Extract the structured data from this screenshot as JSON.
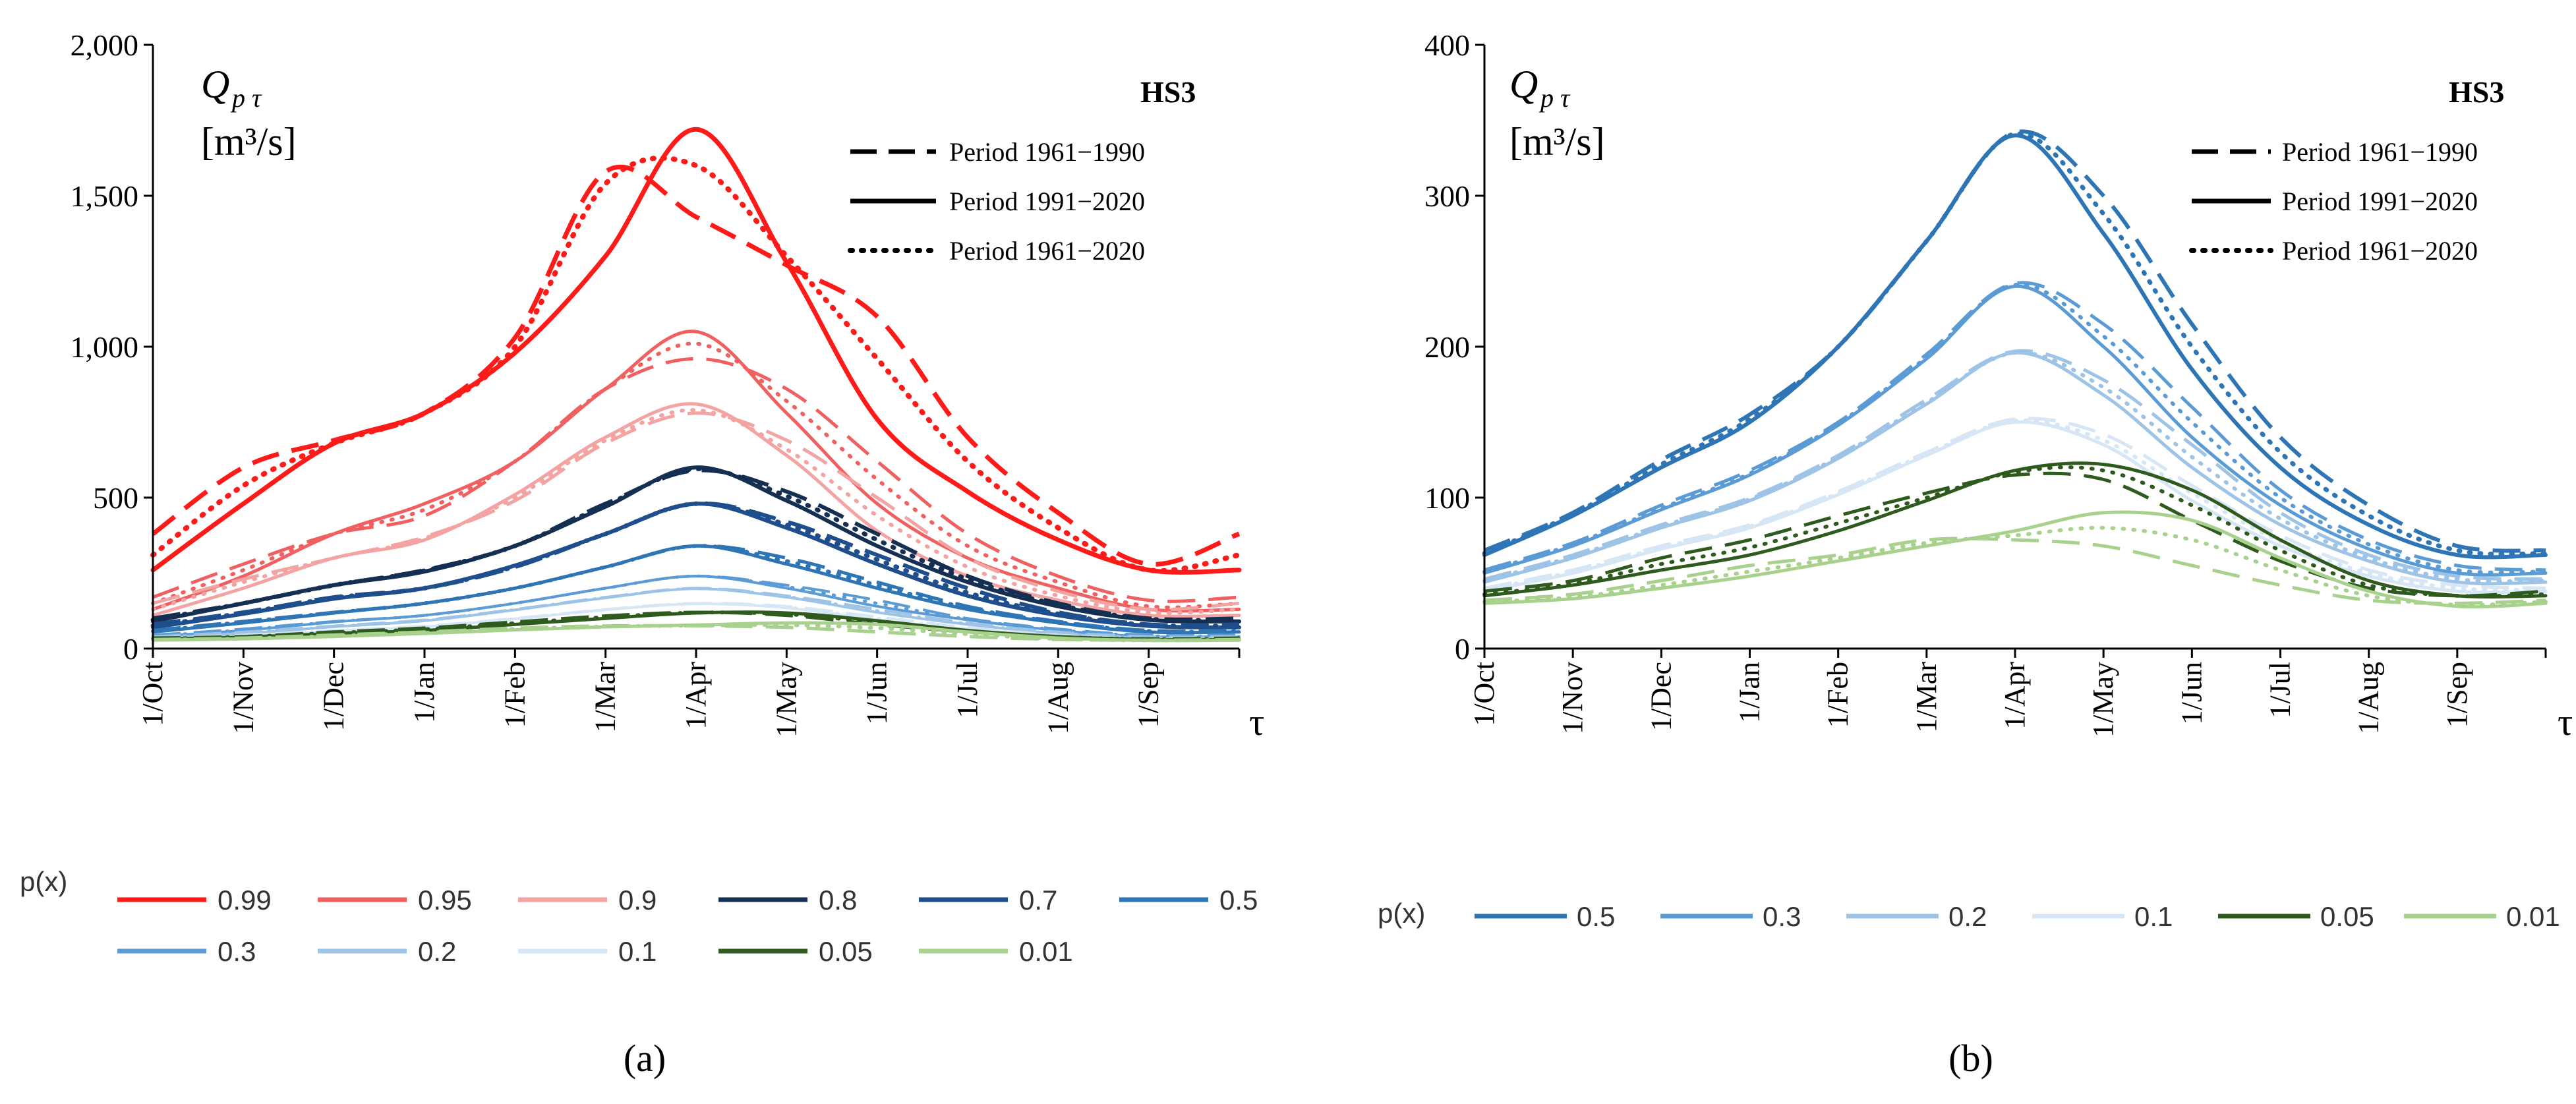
{
  "months": [
    "1/Oct",
    "1/Nov",
    "1/Dec",
    "1/Jan",
    "1/Feb",
    "1/Mar",
    "1/Apr",
    "1/May",
    "1/Jun",
    "1/Jul",
    "1/Aug",
    "1/Sep"
  ],
  "tau": "τ",
  "ylabel_line1": "Q",
  "ylabel_sub": "p τ",
  "ylabel_line2": "[m³/s]",
  "title": "HS3",
  "period_labels": [
    "Period 1961−1990",
    "Period 1991−2020",
    "Period 1961−2020"
  ],
  "px_label": "p(x)",
  "captions": [
    "(a)",
    "(b)"
  ],
  "chart_data": [
    {
      "type": "line",
      "title": "HS3",
      "ylim": [
        0,
        2000
      ],
      "yticks": [
        "0",
        "500",
        "1,000",
        "1,500",
        "2,000"
      ],
      "ytick_values": [
        0,
        500,
        1000,
        1500,
        2000
      ],
      "x": [
        0,
        1,
        2,
        3,
        4,
        5,
        6,
        7,
        8,
        9,
        10,
        11,
        12
      ],
      "xlabel": "τ",
      "series": [
        {
          "name": "0.99",
          "color": "#ff1a1a",
          "width": 7,
          "p1": [
            380,
            600,
            690,
            780,
            1030,
            1580,
            1430,
            1270,
            1100,
            700,
            450,
            280,
            380
          ],
          "p2": [
            260,
            480,
            680,
            780,
            980,
            1300,
            1720,
            1280,
            760,
            520,
            360,
            260,
            260
          ],
          "p3": [
            310,
            540,
            680,
            780,
            1000,
            1540,
            1600,
            1300,
            960,
            620,
            400,
            260,
            310
          ]
        },
        {
          "name": "0.95",
          "color": "#f06060",
          "width": 5,
          "p1": [
            170,
            280,
            380,
            440,
            620,
            860,
            960,
            860,
            620,
            380,
            240,
            160,
            170
          ],
          "p2": [
            130,
            240,
            380,
            480,
            620,
            860,
            1050,
            780,
            480,
            300,
            200,
            130,
            130
          ],
          "p3": [
            150,
            260,
            380,
            460,
            620,
            860,
            1010,
            820,
            560,
            340,
            220,
            140,
            150
          ]
        },
        {
          "name": "0.9",
          "color": "#f4a3a3",
          "width": 5,
          "p1": [
            150,
            230,
            300,
            370,
            490,
            680,
            780,
            690,
            500,
            300,
            190,
            130,
            150
          ],
          "p2": [
            110,
            200,
            300,
            360,
            510,
            700,
            810,
            640,
            390,
            240,
            160,
            110,
            110
          ],
          "p3": [
            130,
            220,
            300,
            365,
            500,
            690,
            790,
            660,
            440,
            270,
            175,
            120,
            130
          ]
        },
        {
          "name": "0.8",
          "color": "#152f52",
          "width": 6,
          "p1": [
            100,
            150,
            210,
            260,
            340,
            480,
            590,
            520,
            380,
            240,
            150,
            100,
            100
          ],
          "p2": [
            90,
            150,
            210,
            255,
            340,
            470,
            600,
            490,
            340,
            220,
            140,
            95,
            90
          ],
          "p3": [
            95,
            150,
            210,
            258,
            340,
            475,
            595,
            505,
            360,
            230,
            145,
            98,
            95
          ]
        },
        {
          "name": "0.7",
          "color": "#1f4e8c",
          "width": 6,
          "p1": [
            80,
            120,
            170,
            200,
            270,
            380,
            480,
            420,
            310,
            200,
            120,
            80,
            80
          ],
          "p2": [
            70,
            115,
            165,
            200,
            275,
            380,
            480,
            400,
            280,
            175,
            110,
            75,
            70
          ],
          "p3": [
            75,
            118,
            168,
            200,
            272,
            380,
            480,
            410,
            295,
            185,
            115,
            78,
            75
          ]
        },
        {
          "name": "0.5",
          "color": "#2e75b6",
          "width": 5,
          "p1": [
            60,
            90,
            120,
            150,
            200,
            270,
            340,
            300,
            220,
            140,
            90,
            60,
            60
          ],
          "p2": [
            55,
            85,
            118,
            150,
            200,
            270,
            340,
            280,
            200,
            130,
            85,
            55,
            55
          ],
          "p3": [
            58,
            88,
            119,
            150,
            200,
            270,
            340,
            290,
            210,
            135,
            88,
            58,
            58
          ]
        },
        {
          "name": "0.3",
          "color": "#5b9bd5",
          "width": 4,
          "p1": [
            45,
            65,
            90,
            110,
            150,
            200,
            240,
            210,
            160,
            100,
            65,
            45,
            45
          ],
          "p2": [
            40,
            60,
            88,
            110,
            150,
            200,
            240,
            200,
            140,
            95,
            60,
            40,
            40
          ],
          "p3": [
            42,
            62,
            89,
            110,
            150,
            200,
            240,
            205,
            150,
            97,
            62,
            42,
            42
          ]
        },
        {
          "name": "0.2",
          "color": "#9dc3e6",
          "width": 4,
          "p1": [
            40,
            55,
            75,
            95,
            130,
            170,
            200,
            175,
            130,
            85,
            55,
            40,
            40
          ],
          "p2": [
            35,
            50,
            72,
            92,
            128,
            168,
            198,
            170,
            120,
            80,
            50,
            35,
            35
          ],
          "p3": [
            37,
            52,
            73,
            93,
            129,
            169,
            199,
            172,
            125,
            82,
            52,
            37,
            37
          ]
        },
        {
          "name": "0.1",
          "color": "#d6e6f5",
          "width": 4,
          "p1": [
            35,
            45,
            60,
            75,
            100,
            130,
            150,
            140,
            105,
            70,
            45,
            33,
            35
          ],
          "p2": [
            30,
            40,
            58,
            72,
            98,
            128,
            148,
            135,
            95,
            65,
            42,
            30,
            30
          ],
          "p3": [
            32,
            42,
            59,
            73,
            99,
            129,
            149,
            137,
            100,
            67,
            43,
            31,
            32
          ]
        },
        {
          "name": "0.05",
          "color": "#2e5a1e",
          "width": 5,
          "p1": [
            35,
            40,
            55,
            68,
            88,
            108,
            120,
            110,
            80,
            55,
            38,
            32,
            35
          ],
          "p2": [
            30,
            38,
            50,
            60,
            80,
            100,
            118,
            118,
            92,
            60,
            40,
            30,
            30
          ],
          "p3": [
            32,
            39,
            52,
            64,
            84,
            104,
            119,
            114,
            86,
            57,
            39,
            31,
            32
          ]
        },
        {
          "name": "0.01",
          "color": "#a9d18e",
          "width": 5,
          "p1": [
            30,
            35,
            45,
            55,
            68,
            75,
            75,
            70,
            55,
            40,
            30,
            28,
            30
          ],
          "p2": [
            28,
            32,
            40,
            50,
            62,
            72,
            78,
            85,
            80,
            55,
            35,
            27,
            28
          ],
          "p3": [
            29,
            33,
            42,
            52,
            65,
            73,
            76,
            78,
            68,
            48,
            32,
            27,
            29
          ]
        }
      ]
    },
    {
      "type": "line",
      "title": "HS3",
      "ylim": [
        0,
        400
      ],
      "yticks": [
        "0",
        "100",
        "200",
        "300",
        "400"
      ],
      "ytick_values": [
        0,
        100,
        200,
        300,
        400
      ],
      "x": [
        0,
        1,
        2,
        3,
        4,
        5,
        6,
        7,
        8,
        9,
        10,
        11,
        12
      ],
      "xlabel": "τ",
      "series": [
        {
          "name": "0.5",
          "color": "#2e75b6",
          "width": 6,
          "p1": [
            65,
            90,
            125,
            155,
            200,
            270,
            342,
            300,
            215,
            140,
            95,
            68,
            65
          ],
          "p2": [
            62,
            88,
            120,
            150,
            200,
            270,
            340,
            275,
            185,
            120,
            82,
            62,
            62
          ],
          "p3": [
            63,
            89,
            122,
            152,
            200,
            270,
            341,
            288,
            200,
            130,
            88,
            65,
            63
          ]
        },
        {
          "name": "0.3",
          "color": "#5b9bd5",
          "width": 5,
          "p1": [
            52,
            70,
            95,
            118,
            150,
            195,
            242,
            215,
            160,
            105,
            72,
            55,
            52
          ],
          "p2": [
            50,
            68,
            92,
            115,
            148,
            192,
            240,
            200,
            140,
            95,
            66,
            50,
            50
          ],
          "p3": [
            51,
            69,
            93,
            116,
            149,
            193,
            241,
            207,
            150,
            100,
            69,
            52,
            51
          ]
        },
        {
          "name": "0.2",
          "color": "#9dc3e6",
          "width": 5,
          "p1": [
            46,
            62,
            82,
            100,
            128,
            165,
            197,
            178,
            135,
            90,
            62,
            48,
            46
          ],
          "p2": [
            44,
            60,
            80,
            98,
            126,
            162,
            196,
            168,
            120,
            82,
            58,
            44,
            44
          ],
          "p3": [
            45,
            61,
            81,
            99,
            127,
            163,
            196,
            173,
            127,
            86,
            60,
            46,
            45
          ]
        },
        {
          "name": "0.1",
          "color": "#d6e6f5",
          "width": 5,
          "p1": [
            40,
            52,
            68,
            82,
            104,
            130,
            152,
            142,
            108,
            75,
            52,
            42,
            40
          ],
          "p2": [
            38,
            50,
            66,
            80,
            102,
            128,
            150,
            135,
            98,
            68,
            48,
            38,
            38
          ],
          "p3": [
            39,
            51,
            67,
            81,
            103,
            129,
            151,
            138,
            103,
            71,
            50,
            40,
            39
          ]
        },
        {
          "name": "0.05",
          "color": "#2e5a1e",
          "width": 5,
          "p1": [
            38,
            45,
            60,
            72,
            88,
            103,
            115,
            112,
            85,
            58,
            40,
            35,
            38
          ],
          "p2": [
            35,
            42,
            52,
            62,
            78,
            98,
            118,
            122,
            105,
            72,
            45,
            35,
            35
          ],
          "p3": [
            36,
            43,
            56,
            67,
            83,
            100,
            117,
            118,
            95,
            65,
            42,
            35,
            36
          ]
        },
        {
          "name": "0.01",
          "color": "#a9d18e",
          "width": 5,
          "p1": [
            32,
            36,
            45,
            55,
            62,
            72,
            72,
            68,
            55,
            42,
            32,
            30,
            32
          ],
          "p2": [
            30,
            33,
            40,
            48,
            58,
            68,
            78,
            90,
            85,
            60,
            38,
            28,
            30
          ],
          "p3": [
            31,
            34,
            42,
            51,
            60,
            70,
            75,
            80,
            72,
            52,
            35,
            29,
            31
          ]
        }
      ]
    }
  ]
}
